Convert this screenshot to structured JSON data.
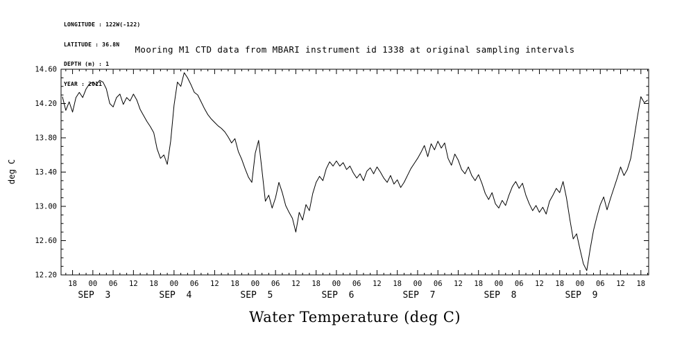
{
  "meta": {
    "lines": [
      "LONGITUDE : 122W(-122)",
      "LATITUDE : 36.8N",
      "DEPTH (m) : 1",
      "YEAR : 2011"
    ]
  },
  "chart_data": {
    "type": "line",
    "title": "Mooring M1 CTD data from MBARI instrument id 1338 at original sampling intervals",
    "xlabel": "Water Temperature (deg C)",
    "ylabel": "deg C",
    "ylim": [
      12.2,
      14.6
    ],
    "yticks": [
      12.2,
      12.6,
      13.0,
      13.4,
      13.8,
      14.2,
      14.6
    ],
    "ytick_labels": [
      "12.20",
      "12.60",
      "13.00",
      "13.40",
      "13.80",
      "14.20",
      "14.60"
    ],
    "y_minor_step": 0.1,
    "grid": false,
    "line_color": "#000000",
    "x_domain_hours": [
      14.6,
      188.3
    ],
    "x_ticks": {
      "start_h": 18,
      "step_h": 6,
      "labels": [
        "18",
        "00",
        "06",
        "12",
        "18",
        "00",
        "06",
        "12",
        "18",
        "00",
        "06",
        "12",
        "18",
        "00",
        "06",
        "12",
        "18",
        "00",
        "06",
        "12",
        "18",
        "00",
        "06",
        "12",
        "18",
        "00",
        "06",
        "12",
        "18"
      ]
    },
    "x_minor_step_h": 2,
    "day_labels": {
      "hours": [
        24,
        48,
        72,
        96,
        120,
        144,
        168
      ],
      "labels": [
        "SEP  3",
        "SEP  4",
        "SEP  5",
        "SEP  6",
        "SEP  7",
        "SEP  8",
        "SEP  9"
      ]
    },
    "series": [
      {
        "name": "water_temperature_degC",
        "start_hour": 15,
        "step_hours": 1,
        "values": [
          14.28,
          14.12,
          14.22,
          14.1,
          14.27,
          14.33,
          14.27,
          14.37,
          14.43,
          14.45,
          14.42,
          14.47,
          14.45,
          14.37,
          14.2,
          14.16,
          14.27,
          14.31,
          14.19,
          14.27,
          14.23,
          14.31,
          14.24,
          14.13,
          14.06,
          13.99,
          13.93,
          13.86,
          13.67,
          13.56,
          13.6,
          13.49,
          13.76,
          14.18,
          14.45,
          14.4,
          14.56,
          14.5,
          14.42,
          14.33,
          14.3,
          14.22,
          14.14,
          14.07,
          14.02,
          13.98,
          13.94,
          13.91,
          13.87,
          13.81,
          13.74,
          13.79,
          13.64,
          13.55,
          13.44,
          13.34,
          13.28,
          13.62,
          13.77,
          13.42,
          13.06,
          13.13,
          12.98,
          13.1,
          13.28,
          13.16,
          13.01,
          12.93,
          12.86,
          12.7,
          12.93,
          12.84,
          13.02,
          12.95,
          13.15,
          13.28,
          13.35,
          13.3,
          13.44,
          13.52,
          13.47,
          13.53,
          13.47,
          13.51,
          13.43,
          13.47,
          13.39,
          13.33,
          13.38,
          13.3,
          13.41,
          13.45,
          13.38,
          13.46,
          13.4,
          13.33,
          13.28,
          13.36,
          13.26,
          13.31,
          13.22,
          13.28,
          13.36,
          13.44,
          13.5,
          13.56,
          13.63,
          13.71,
          13.58,
          13.73,
          13.66,
          13.76,
          13.68,
          13.74,
          13.56,
          13.48,
          13.61,
          13.54,
          13.43,
          13.38,
          13.46,
          13.36,
          13.3,
          13.37,
          13.27,
          13.15,
          13.08,
          13.16,
          13.03,
          12.98,
          13.07,
          13.01,
          13.13,
          13.23,
          13.29,
          13.21,
          13.27,
          13.13,
          13.03,
          12.95,
          13.01,
          12.93,
          12.99,
          12.91,
          13.06,
          13.13,
          13.21,
          13.16,
          13.29,
          13.1,
          12.85,
          12.62,
          12.68,
          12.5,
          12.33,
          12.25,
          12.5,
          12.72,
          12.88,
          13.02,
          13.11,
          12.96,
          13.09,
          13.21,
          13.33,
          13.46,
          13.36,
          13.43,
          13.56,
          13.8,
          14.05,
          14.28,
          14.21,
          14.24
        ]
      }
    ]
  }
}
